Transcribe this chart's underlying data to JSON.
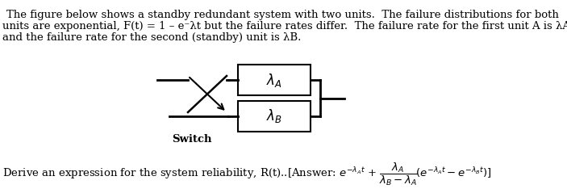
{
  "bg_color": "#ffffff",
  "line1": "The figure below shows a standby redundant system with two units.  The failure distributions for both",
  "line2": "units are exponential, F(t) = 1 – e⁻λt but the failure rates differ.  The failure rate for the first unit A is λA",
  "line3": "and the failure rate for the second (standby) unit is λB.",
  "switch_label": "Switch",
  "font_size_main": 9.5,
  "font_size_diagram": 11,
  "bottom_line": "Derive an expression for the system reliability, R(t)..[Answer: "
}
